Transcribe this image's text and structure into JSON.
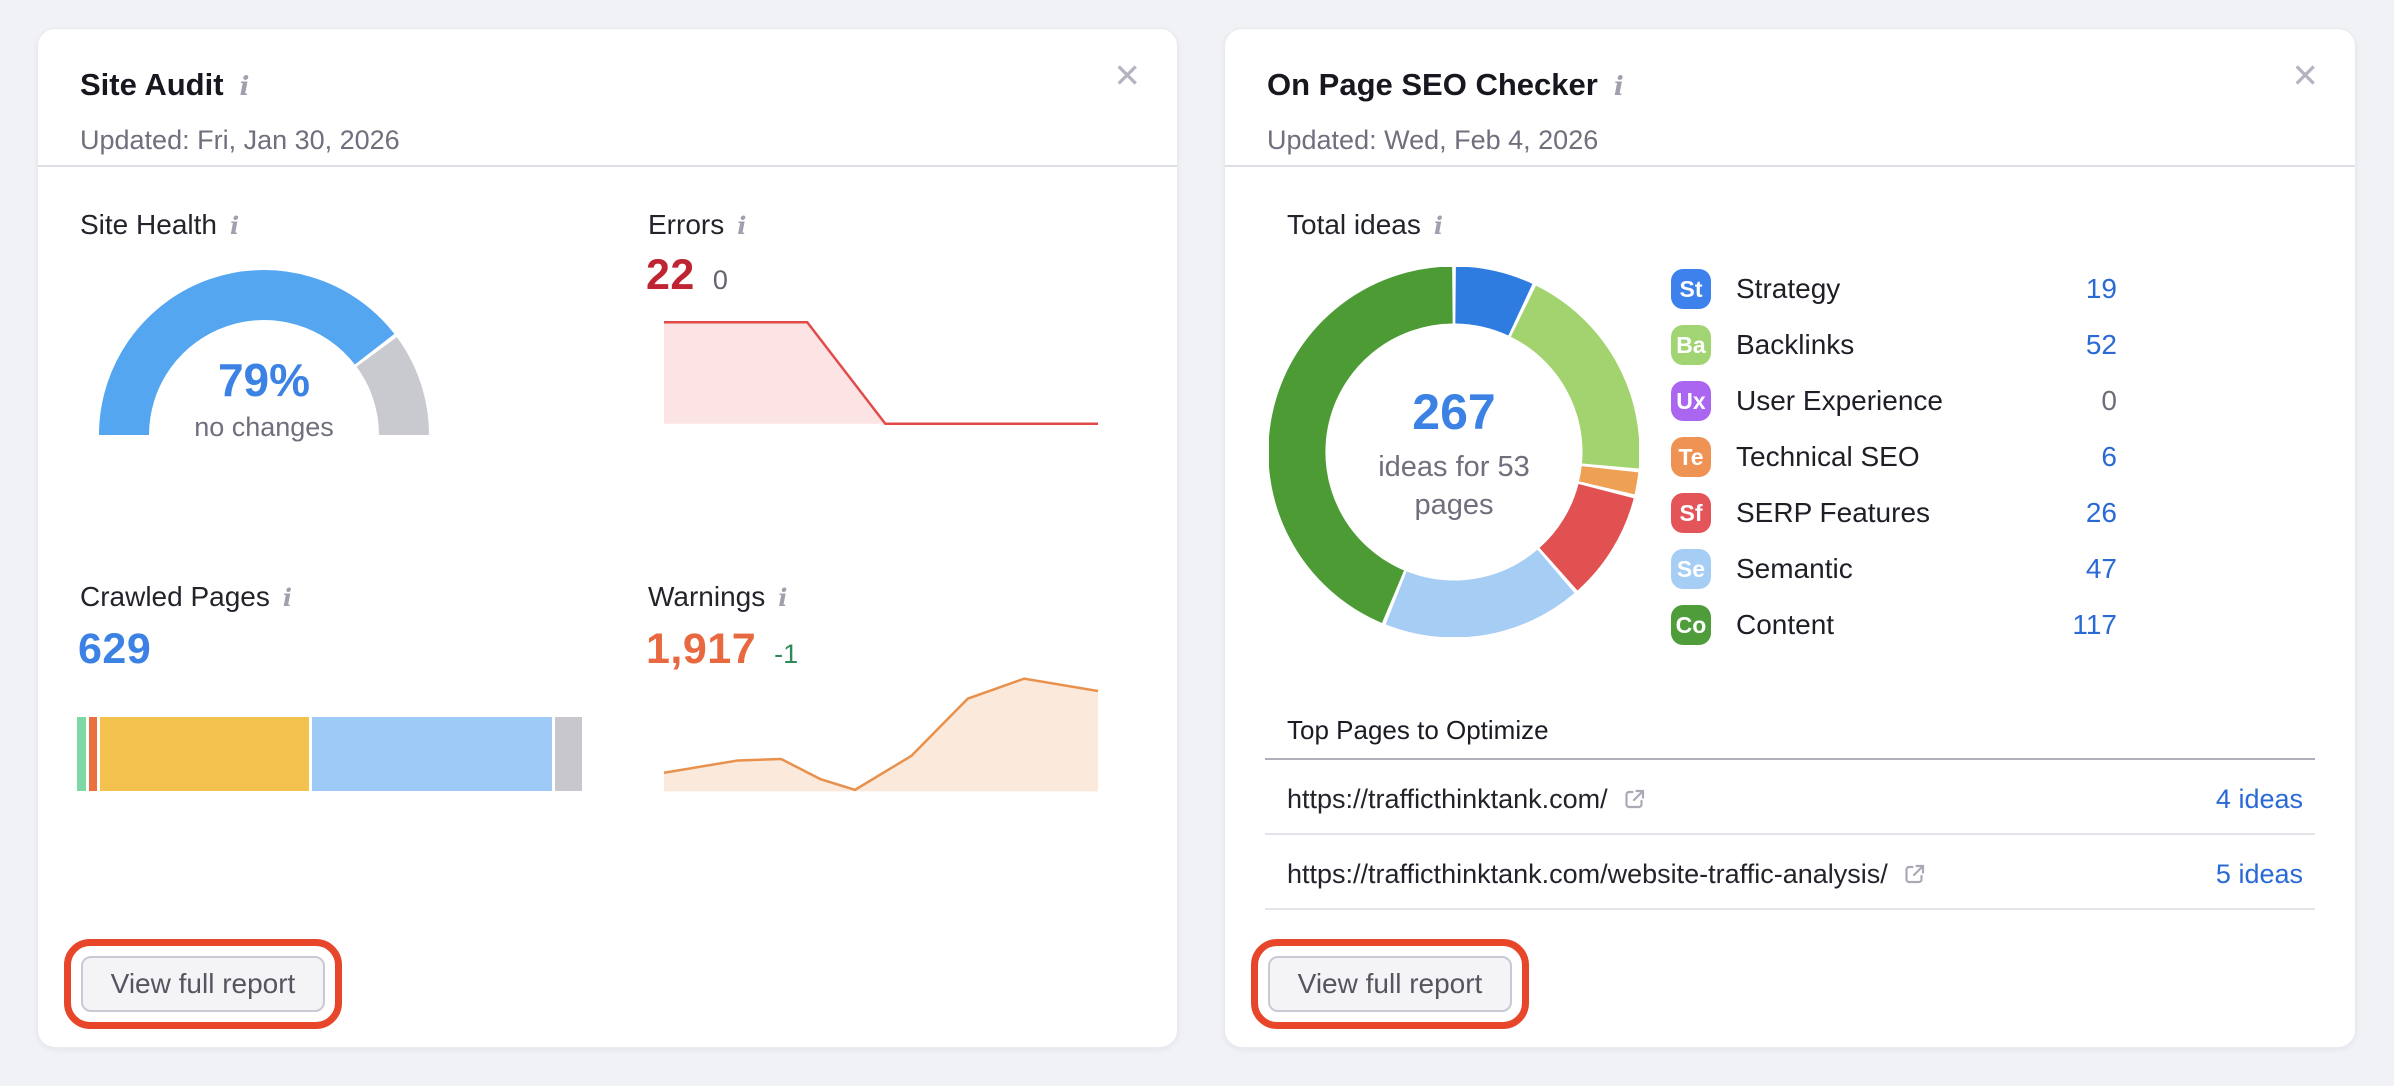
{
  "ui_colors": {
    "link_blue": "#2a6ad4",
    "metric_blue": "#3b82e4",
    "error_red": "#bf2433",
    "warning_orange": "#e8683f",
    "delta_green": "#2e8a57",
    "delta_gray": "#63636e",
    "annotation_red": "#e8462a",
    "zero_gray": "#6e6e7a"
  },
  "site_audit": {
    "title": "Site Audit",
    "info_icon": "i",
    "close_label": "✕",
    "updated": "Updated: Fri, Jan 30, 2026",
    "site_health_label": "Site Health",
    "errors_label": "Errors",
    "errors_value": "22",
    "errors_delta": "0",
    "crawled_label": "Crawled Pages",
    "crawled_value": "629",
    "warnings_label": "Warnings",
    "warnings_value": "1,917",
    "warnings_delta": "-1",
    "button_label": "View full report"
  },
  "on_page": {
    "title": "On Page SEO Checker",
    "info_icon": "i",
    "close_label": "✕",
    "updated": "Updated: Wed, Feb 4, 2026",
    "total_ideas_label": "Total ideas",
    "legend": [
      {
        "abbr": "St",
        "label": "Strategy",
        "value": "19",
        "badge_color": "#3d82ec",
        "value_color": "#2a6ad4"
      },
      {
        "abbr": "Ba",
        "label": "Backlinks",
        "value": "52",
        "badge_color": "#a1d472",
        "value_color": "#2a6ad4"
      },
      {
        "abbr": "Ux",
        "label": "User Experience",
        "value": "0",
        "badge_color": "#aa66f0",
        "value_color": "#6e6e7a"
      },
      {
        "abbr": "Te",
        "label": "Technical SEO",
        "value": "6",
        "badge_color": "#ef9355",
        "value_color": "#2a6ad4"
      },
      {
        "abbr": "Sf",
        "label": "SERP Features",
        "value": "26",
        "badge_color": "#e4555a",
        "value_color": "#2a6ad4"
      },
      {
        "abbr": "Se",
        "label": "Semantic",
        "value": "47",
        "badge_color": "#a6cef4",
        "value_color": "#2a6ad4"
      },
      {
        "abbr": "Co",
        "label": "Content",
        "value": "117",
        "badge_color": "#4e9c3a",
        "value_color": "#2a6ad4"
      }
    ],
    "top_pages_heading": "Top Pages to Optimize",
    "top_pages": [
      {
        "url": "https://trafficthinktank.com/",
        "ideas": "4 ideas"
      },
      {
        "url": "https://trafficthinktank.com/website-traffic-analysis/",
        "ideas": "5 ideas"
      }
    ],
    "button_label": "View full report"
  },
  "chart_data": [
    {
      "type": "gauge",
      "title": "Site Health",
      "value": 79,
      "max": 100,
      "label": "79%",
      "note": "no changes",
      "color": "#55a6f0",
      "track_color": "#c9c9d0",
      "value_color": "#3b82e4"
    },
    {
      "type": "area",
      "title": "Errors trend",
      "current": 22,
      "delta": 0,
      "x": [
        0,
        33,
        51,
        100
      ],
      "y": [
        22,
        22,
        0,
        0
      ],
      "line_color": "#e34b4b",
      "fill_color": "#fce4e4"
    },
    {
      "type": "stacked_bar",
      "title": "Crawled Pages breakdown",
      "total": 629,
      "segments": [
        {
          "pct": 1.8,
          "color": "#7cd9a3"
        },
        {
          "pct": 1.6,
          "color": "#e8713f"
        },
        {
          "pct": 41.5,
          "color": "#f2c14e"
        },
        {
          "pct": 47.5,
          "color": "#9ecaf7"
        },
        {
          "pct": 5.4,
          "color": "#c7c7cd"
        }
      ]
    },
    {
      "type": "area",
      "title": "Warnings trend",
      "current": 1917,
      "delta": -1,
      "x": [
        0,
        17,
        27,
        36,
        44,
        57,
        70,
        83,
        100
      ],
      "y": [
        12,
        20,
        21,
        8,
        1,
        23,
        60,
        73,
        65
      ],
      "line_color": "#e8914d",
      "fill_color": "#fbe9db"
    },
    {
      "type": "donut",
      "title": "Total ideas",
      "center_value": "267",
      "center_caption": "ideas for 53 pages",
      "series": [
        {
          "name": "Strategy",
          "value": 19,
          "color": "#2f7ce0"
        },
        {
          "name": "Backlinks",
          "value": 52,
          "color": "#a2d36e"
        },
        {
          "name": "User Experience",
          "value": 0,
          "color": "#aa66f0"
        },
        {
          "name": "Technical SEO",
          "value": 6,
          "color": "#eea055"
        },
        {
          "name": "SERP Features",
          "value": 26,
          "color": "#e15151"
        },
        {
          "name": "Semantic",
          "value": 47,
          "color": "#a6cdf3"
        },
        {
          "name": "Content",
          "value": 117,
          "color": "#4d9b35"
        }
      ]
    }
  ]
}
